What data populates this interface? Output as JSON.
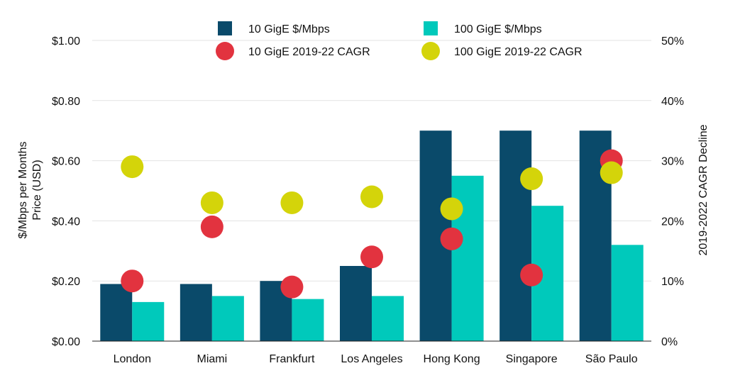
{
  "chart_data": {
    "type": "bar",
    "categories": [
      "London",
      "Miami",
      "Frankfurt",
      "Los Angeles",
      "Hong Kong",
      "Singapore",
      "São Paulo"
    ],
    "series": [
      {
        "name": "10 GigE $/Mbps",
        "kind": "bar",
        "axis": "left",
        "color": "#0a4a6a",
        "values": [
          0.19,
          0.19,
          0.2,
          0.25,
          0.7,
          0.7,
          0.7
        ]
      },
      {
        "name": "100 GigE $/Mbps",
        "kind": "bar",
        "axis": "left",
        "color": "#00c9bb",
        "values": [
          0.13,
          0.15,
          0.14,
          0.15,
          0.55,
          0.45,
          0.32
        ]
      },
      {
        "name": "10 GigE 2019-22 CAGR",
        "kind": "dot",
        "axis": "right",
        "color": "#e2333f",
        "values": [
          10,
          19,
          9,
          14,
          17,
          11,
          30
        ]
      },
      {
        "name": "100 GigE 2019-22 CAGR",
        "kind": "dot",
        "axis": "right",
        "color": "#d4d40a",
        "values": [
          29,
          23,
          23,
          24,
          22,
          27,
          28
        ]
      }
    ],
    "ylabel": "$/Mbps per Months Price (USD)",
    "ylabel_lines": [
      "$/Mbps per Months",
      "Price (USD)"
    ],
    "y2label": "2019-2022 CAGR Decline",
    "ylim": [
      0,
      1.0
    ],
    "y2lim": [
      0,
      50
    ],
    "yticks": [
      "$0.00",
      "$0.20",
      "$0.40",
      "$0.60",
      "$0.80",
      "$1.00"
    ],
    "y2ticks": [
      "0%",
      "10%",
      "20%",
      "30%",
      "40%",
      "50%"
    ],
    "grid": true,
    "legend_position": "top"
  }
}
